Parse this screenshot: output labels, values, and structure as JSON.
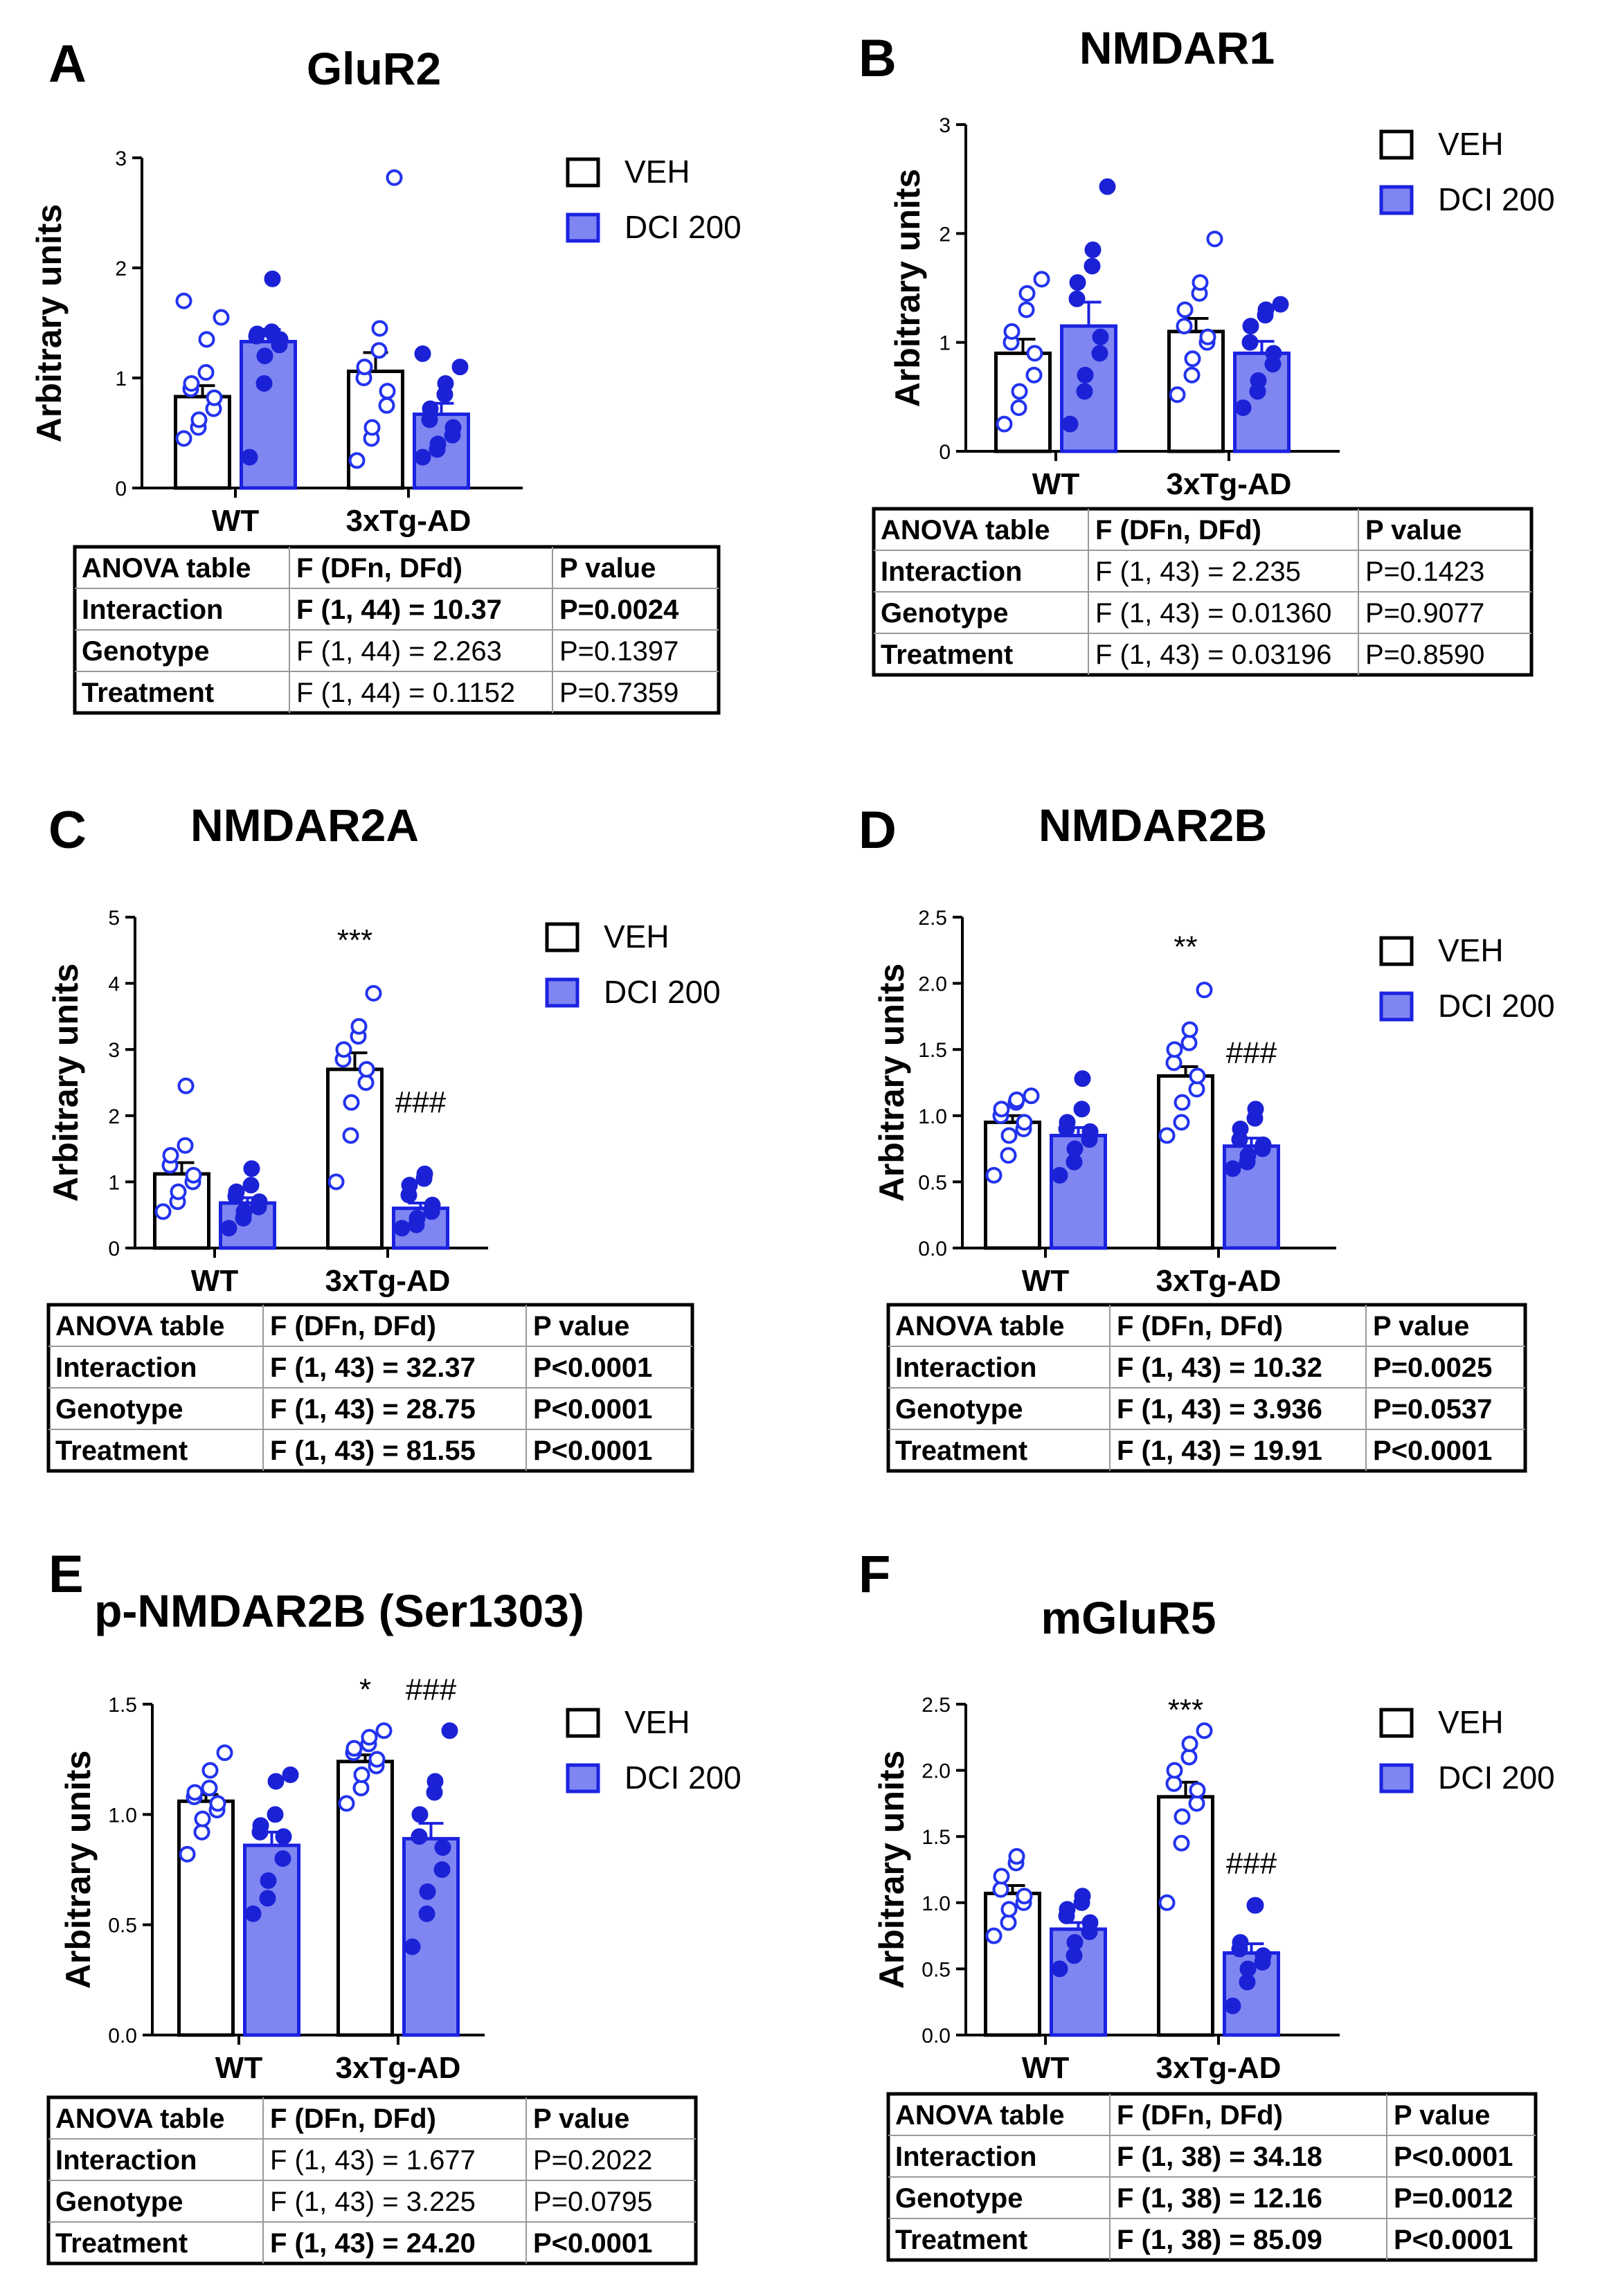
{
  "colors": {
    "veh_point": "#2233ee",
    "dci_fill": "#7f86f2",
    "dci_stroke": "#1b22e0",
    "dci_point": "#1b22d6",
    "axis": "#000000",
    "grid": "#999999"
  },
  "legend": {
    "veh": "VEH",
    "dci": "DCI 200"
  },
  "table_header": [
    "ANOVA table",
    "F (DFn, DFd)",
    "P value"
  ],
  "chart_data": [
    {
      "letter": "A",
      "title": "GluR2",
      "type": "bar",
      "ylabel": "Arbitrary units",
      "categories": [
        "WT",
        "3xTg-AD"
      ],
      "ylim": [
        0,
        3
      ],
      "yticks": [
        "0",
        "1",
        "2",
        "3"
      ],
      "series": [
        {
          "name": "VEH",
          "values": [
            0.83,
            1.06
          ],
          "sem": [
            0.1,
            0.17
          ],
          "points": [
            [
              0.45,
              0.55,
              0.62,
              0.72,
              0.82,
              0.9,
              0.95,
              1.05,
              1.35,
              1.55,
              1.7
            ],
            [
              0.25,
              0.45,
              0.55,
              0.75,
              0.88,
              1.0,
              1.1,
              1.25,
              1.45,
              2.82
            ]
          ]
        },
        {
          "name": "DCI 200",
          "values": [
            1.33,
            0.67
          ],
          "sem": [
            0.11,
            0.1
          ],
          "points": [
            [
              0.28,
              0.95,
              1.2,
              1.3,
              1.35,
              1.38,
              1.4,
              1.42,
              1.9
            ],
            [
              0.28,
              0.35,
              0.4,
              0.48,
              0.55,
              0.62,
              0.72,
              0.85,
              0.95,
              1.1,
              1.22
            ]
          ]
        }
      ],
      "annotations": [],
      "anova": [
        {
          "row": "Interaction",
          "f": "F (1, 44) = 10.37",
          "p": "P=0.0024",
          "bold_values": true
        },
        {
          "row": "Genotype",
          "f": "F (1, 44) = 2.263",
          "p": "P=0.1397",
          "bold_values": false
        },
        {
          "row": "Treatment",
          "f": "F (1, 44) = 0.1152",
          "p": "P=0.7359",
          "bold_values": false
        }
      ]
    },
    {
      "letter": "B",
      "title": "NMDAR1",
      "type": "bar",
      "ylabel": "Arbitrary units",
      "categories": [
        "WT",
        "3xTg-AD"
      ],
      "ylim": [
        0,
        3
      ],
      "yticks": [
        "0",
        "1",
        "2",
        "3"
      ],
      "series": [
        {
          "name": "VEH",
          "values": [
            0.9,
            1.1
          ],
          "sem": [
            0.13,
            0.12
          ],
          "points": [
            [
              0.25,
              0.4,
              0.55,
              0.7,
              0.9,
              1.0,
              1.1,
              1.3,
              1.45,
              1.58
            ],
            [
              0.52,
              0.7,
              0.85,
              1.0,
              1.05,
              1.15,
              1.3,
              1.45,
              1.55,
              1.95
            ]
          ]
        },
        {
          "name": "DCI 200",
          "values": [
            1.15,
            0.9
          ],
          "sem": [
            0.22,
            0.11
          ],
          "points": [
            [
              0.25,
              0.55,
              0.7,
              0.9,
              1.05,
              1.4,
              1.55,
              1.7,
              1.85,
              2.43
            ],
            [
              0.4,
              0.55,
              0.65,
              0.8,
              0.9,
              1.0,
              1.15,
              1.25,
              1.3,
              1.35
            ]
          ]
        }
      ],
      "annotations": [],
      "anova": [
        {
          "row": "Interaction",
          "f": "F (1, 43) = 2.235",
          "p": "P=0.1423",
          "bold_values": false
        },
        {
          "row": "Genotype",
          "f": "F (1, 43) = 0.01360",
          "p": "P=0.9077",
          "bold_values": false
        },
        {
          "row": "Treatment",
          "f": "F (1, 43) = 0.03196",
          "p": "P=0.8590",
          "bold_values": false
        }
      ]
    },
    {
      "letter": "C",
      "title": "NMDAR2A",
      "type": "bar",
      "ylabel": "Arbitrary units",
      "categories": [
        "WT",
        "3xTg-AD"
      ],
      "ylim": [
        0,
        5
      ],
      "yticks": [
        "0",
        "1",
        "2",
        "3",
        "4",
        "5"
      ],
      "series": [
        {
          "name": "VEH",
          "values": [
            1.12,
            2.7
          ],
          "sem": [
            0.17,
            0.25
          ],
          "points": [
            [
              0.55,
              0.7,
              0.85,
              1.0,
              1.1,
              1.25,
              1.4,
              1.55,
              2.45
            ],
            [
              1.0,
              1.7,
              2.2,
              2.5,
              2.7,
              2.85,
              3.0,
              3.2,
              3.35,
              3.85
            ]
          ]
        },
        {
          "name": "DCI 200",
          "values": [
            0.68,
            0.6
          ],
          "sem": [
            0.08,
            0.08
          ],
          "points": [
            [
              0.3,
              0.45,
              0.55,
              0.62,
              0.7,
              0.78,
              0.85,
              0.95,
              1.2
            ],
            [
              0.3,
              0.35,
              0.45,
              0.55,
              0.65,
              0.8,
              0.95,
              1.05,
              1.12
            ]
          ]
        }
      ],
      "annotations": [
        {
          "text": "***",
          "category": 1,
          "series": 0,
          "value": 4.5
        },
        {
          "text": "###",
          "category": 1,
          "series": 1,
          "value": 2.05
        }
      ],
      "anova": [
        {
          "row": "Interaction",
          "f": "F (1, 43) = 32.37",
          "p": "P<0.0001",
          "bold_values": true
        },
        {
          "row": "Genotype",
          "f": "F (1, 43) = 28.75",
          "p": "P<0.0001",
          "bold_values": true
        },
        {
          "row": "Treatment",
          "f": "F (1, 43) = 81.55",
          "p": "P<0.0001",
          "bold_values": true
        }
      ]
    },
    {
      "letter": "D",
      "title": "NMDAR2B",
      "type": "bar",
      "ylabel": "Arbitrary units",
      "categories": [
        "WT",
        "3xTg-AD"
      ],
      "ylim": [
        0,
        2.5
      ],
      "yticks": [
        "0.0",
        "0.5",
        "1.0",
        "1.5",
        "2.0",
        "2.5"
      ],
      "series": [
        {
          "name": "VEH",
          "values": [
            0.95,
            1.3
          ],
          "sem": [
            0.05,
            0.07
          ],
          "points": [
            [
              0.55,
              0.7,
              0.85,
              0.9,
              0.95,
              1.0,
              1.05,
              1.1,
              1.12,
              1.15
            ],
            [
              0.85,
              0.95,
              1.1,
              1.2,
              1.3,
              1.4,
              1.5,
              1.55,
              1.65,
              1.95
            ]
          ]
        },
        {
          "name": "DCI 200",
          "values": [
            0.85,
            0.77
          ],
          "sem": [
            0.06,
            0.06
          ],
          "points": [
            [
              0.55,
              0.65,
              0.75,
              0.82,
              0.88,
              0.9,
              0.95,
              1.05,
              1.28
            ],
            [
              0.6,
              0.65,
              0.7,
              0.75,
              0.78,
              0.82,
              0.9,
              0.98,
              1.05
            ]
          ]
        }
      ],
      "annotations": [
        {
          "text": "**",
          "category": 1,
          "series": 0,
          "value": 2.2
        },
        {
          "text": "###",
          "category": 1,
          "series": 1,
          "value": 1.4
        }
      ],
      "anova": [
        {
          "row": "Interaction",
          "f": "F (1, 43) = 10.32",
          "p": "P=0.0025",
          "bold_values": true
        },
        {
          "row": "Genotype",
          "f": "F (1, 43) = 3.936",
          "p": "P=0.0537",
          "bold_values": true
        },
        {
          "row": "Treatment",
          "f": "F (1, 43) = 19.91",
          "p": "P<0.0001",
          "bold_values": true
        }
      ]
    },
    {
      "letter": "E",
      "title": "p-NMDAR2B (Ser1303)",
      "type": "bar",
      "ylabel": "Arbitrary units",
      "categories": [
        "WT",
        "3xTg-AD"
      ],
      "ylim": [
        0,
        1.5
      ],
      "yticks": [
        "0.0",
        "0.5",
        "1.0",
        "1.5"
      ],
      "series": [
        {
          "name": "VEH",
          "values": [
            1.06,
            1.24
          ],
          "sem": [
            0.03,
            0.03
          ],
          "points": [
            [
              0.82,
              0.92,
              0.98,
              1.02,
              1.05,
              1.08,
              1.1,
              1.12,
              1.2,
              1.28
            ],
            [
              1.05,
              1.12,
              1.18,
              1.22,
              1.25,
              1.28,
              1.3,
              1.32,
              1.35,
              1.38
            ]
          ]
        },
        {
          "name": "DCI 200",
          "values": [
            0.86,
            0.89
          ],
          "sem": [
            0.06,
            0.07
          ],
          "points": [
            [
              0.55,
              0.62,
              0.7,
              0.8,
              0.9,
              0.92,
              0.95,
              1.0,
              1.15,
              1.18
            ],
            [
              0.4,
              0.55,
              0.65,
              0.75,
              0.85,
              0.9,
              1.0,
              1.1,
              1.15,
              1.38
            ]
          ]
        }
      ],
      "annotations": [
        {
          "text": "*",
          "category": 1,
          "series": 0,
          "value": 1.52
        },
        {
          "text": "###",
          "category": 1,
          "series": 1,
          "value": 1.52
        }
      ],
      "anova": [
        {
          "row": "Interaction",
          "f": "F (1, 43) = 1.677",
          "p": "P=0.2022",
          "bold_values": false
        },
        {
          "row": "Genotype",
          "f": "F (1, 43) = 3.225",
          "p": "P=0.0795",
          "bold_values": false
        },
        {
          "row": "Treatment",
          "f": "F (1, 43) = 24.20",
          "p": "P<0.0001",
          "bold_values": true
        }
      ]
    },
    {
      "letter": "F",
      "title": "mGluR5",
      "type": "bar",
      "ylabel": "Arbitrary units",
      "categories": [
        "WT",
        "3xTg-AD"
      ],
      "ylim": [
        0,
        2.5
      ],
      "yticks": [
        "0.0",
        "0.5",
        "1.0",
        "1.5",
        "2.0",
        "2.5"
      ],
      "series": [
        {
          "name": "VEH",
          "values": [
            1.07,
            1.8
          ],
          "sem": [
            0.06,
            0.11
          ],
          "points": [
            [
              0.75,
              0.85,
              0.95,
              1.0,
              1.05,
              1.1,
              1.2,
              1.3,
              1.35
            ],
            [
              1.0,
              1.45,
              1.65,
              1.75,
              1.85,
              1.9,
              2.0,
              2.1,
              2.2,
              2.3
            ]
          ]
        },
        {
          "name": "DCI 200",
          "values": [
            0.8,
            0.62
          ],
          "sem": [
            0.05,
            0.07
          ],
          "points": [
            [
              0.5,
              0.6,
              0.7,
              0.78,
              0.85,
              0.9,
              0.95,
              1.0,
              1.05
            ],
            [
              0.22,
              0.4,
              0.5,
              0.55,
              0.6,
              0.65,
              0.7,
              0.98,
              0.98
            ]
          ]
        }
      ],
      "annotations": [
        {
          "text": "***",
          "category": 1,
          "series": 0,
          "value": 2.38
        },
        {
          "text": "###",
          "category": 1,
          "series": 1,
          "value": 1.22
        }
      ],
      "anova": [
        {
          "row": "Interaction",
          "f": "F (1, 38) = 34.18",
          "p": "P<0.0001",
          "bold_values": true
        },
        {
          "row": "Genotype",
          "f": "F (1, 38) = 12.16",
          "p": "P=0.0012",
          "bold_values": true
        },
        {
          "row": "Treatment",
          "f": "F (1, 38) = 85.09",
          "p": "P<0.0001",
          "bold_values": true
        }
      ]
    }
  ]
}
